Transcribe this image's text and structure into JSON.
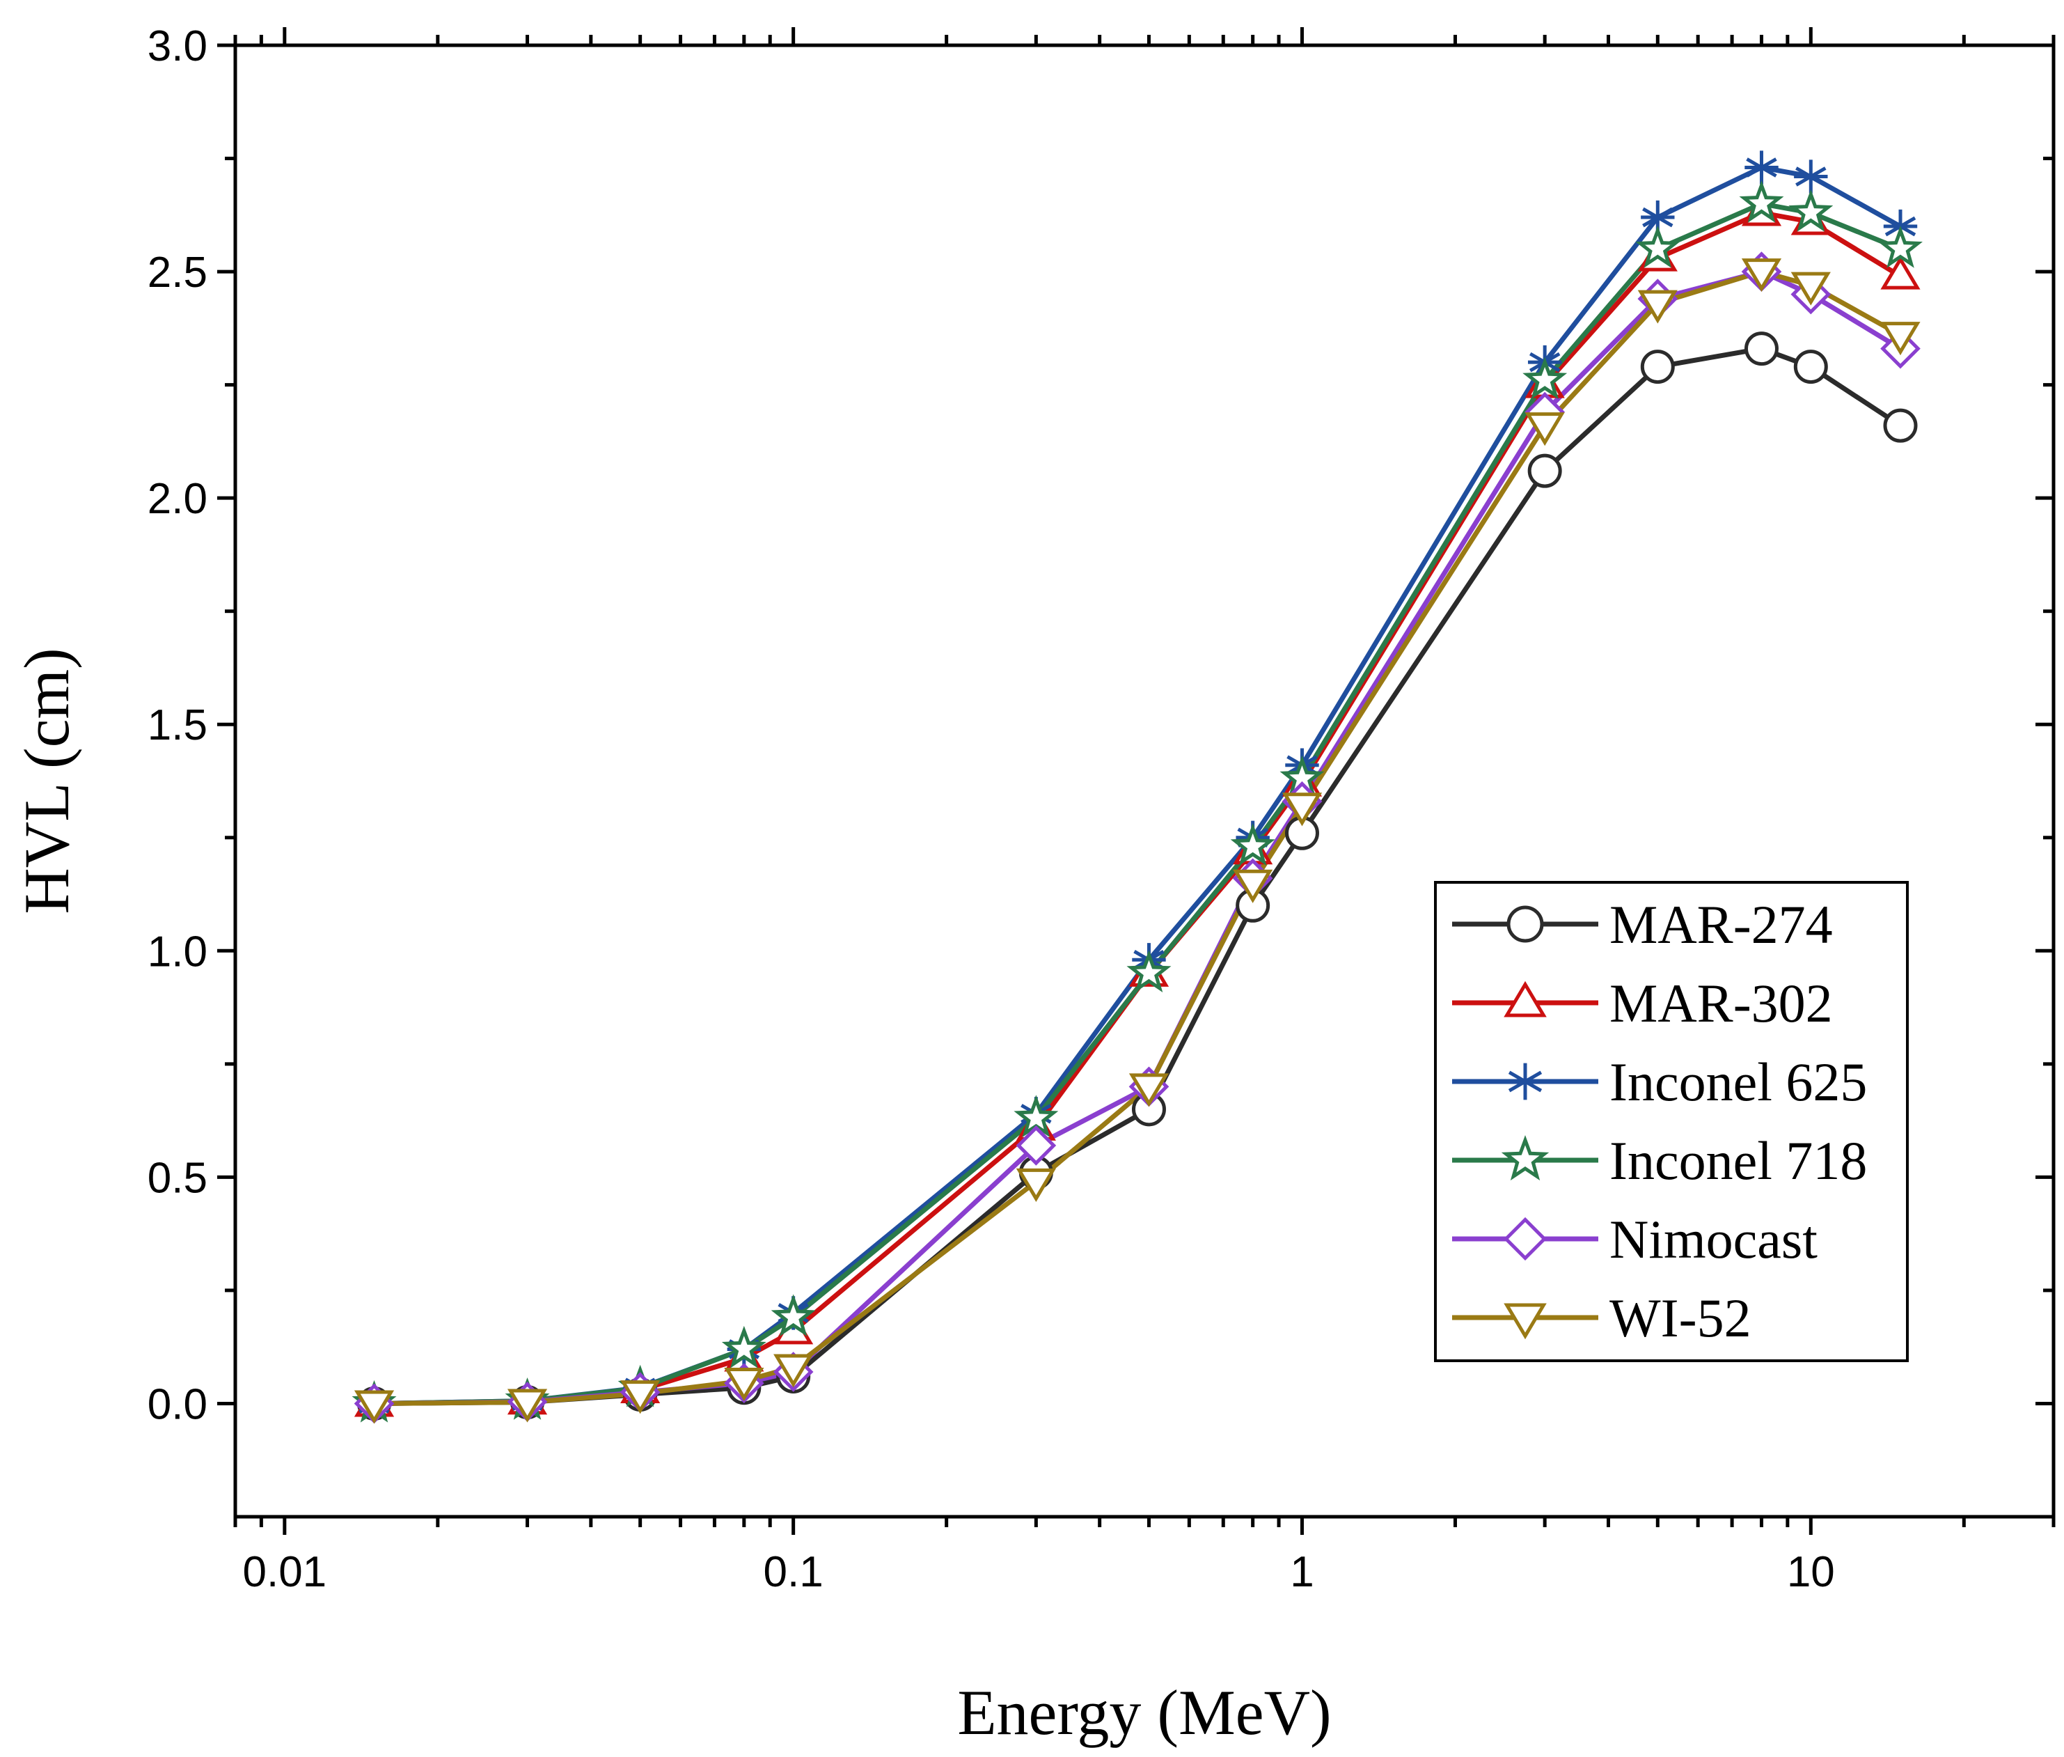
{
  "chart_data": {
    "type": "line",
    "title": "",
    "xlabel": "Energy (MeV)",
    "ylabel": "HVL (cm)",
    "xscale": "log",
    "xlim": [
      0.008,
      30
    ],
    "ylim": [
      -0.25,
      3.0
    ],
    "x_ticks": [
      0.01,
      0.1,
      1,
      10
    ],
    "x_tick_labels": [
      "0.01",
      "0.1",
      "1",
      "10"
    ],
    "y_ticks": [
      0.0,
      0.5,
      1.0,
      1.5,
      2.0,
      2.5,
      3.0
    ],
    "y_tick_labels": [
      "0.0",
      "0.5",
      "1.0",
      "1.5",
      "2.0",
      "2.5",
      "3.0"
    ],
    "grid": false,
    "legend_position": "center-right",
    "x": [
      0.015,
      0.03,
      0.05,
      0.08,
      0.1,
      0.3,
      0.5,
      0.8,
      1,
      3,
      5,
      8,
      10,
      15
    ],
    "series": [
      {
        "name": "MAR-274",
        "color": "#2b2b2b",
        "marker": "circle",
        "values": [
          0.0,
          0.003,
          0.02,
          0.035,
          0.06,
          0.51,
          0.65,
          1.1,
          1.26,
          2.06,
          2.29,
          2.33,
          2.29,
          2.16
        ]
      },
      {
        "name": "MAR-302",
        "color": "#cc1010",
        "marker": "triangle-up",
        "values": [
          0.0,
          0.005,
          0.03,
          0.1,
          0.16,
          0.61,
          0.95,
          1.22,
          1.37,
          2.25,
          2.53,
          2.63,
          2.61,
          2.49
        ]
      },
      {
        "name": "Inconel 625",
        "color": "#1f4e9e",
        "marker": "asterisk",
        "values": [
          0.0,
          0.006,
          0.035,
          0.12,
          0.2,
          0.64,
          0.98,
          1.25,
          1.41,
          2.3,
          2.62,
          2.73,
          2.71,
          2.6
        ]
      },
      {
        "name": "Inconel 718",
        "color": "#2a7a4a",
        "marker": "star",
        "values": [
          0.0,
          0.006,
          0.034,
          0.12,
          0.19,
          0.63,
          0.95,
          1.23,
          1.38,
          2.26,
          2.55,
          2.65,
          2.63,
          2.55
        ]
      },
      {
        "name": "Nimocast",
        "color": "#8a3fcf",
        "marker": "diamond",
        "values": [
          0.0,
          0.004,
          0.025,
          0.045,
          0.07,
          0.57,
          0.7,
          1.16,
          1.33,
          2.19,
          2.44,
          2.5,
          2.45,
          2.33
        ]
      },
      {
        "name": "WI-52",
        "color": "#9a7a14",
        "marker": "triangle-down",
        "values": [
          0.0,
          0.003,
          0.022,
          0.05,
          0.08,
          0.49,
          0.7,
          1.15,
          1.32,
          2.16,
          2.43,
          2.5,
          2.47,
          2.36
        ]
      }
    ]
  }
}
